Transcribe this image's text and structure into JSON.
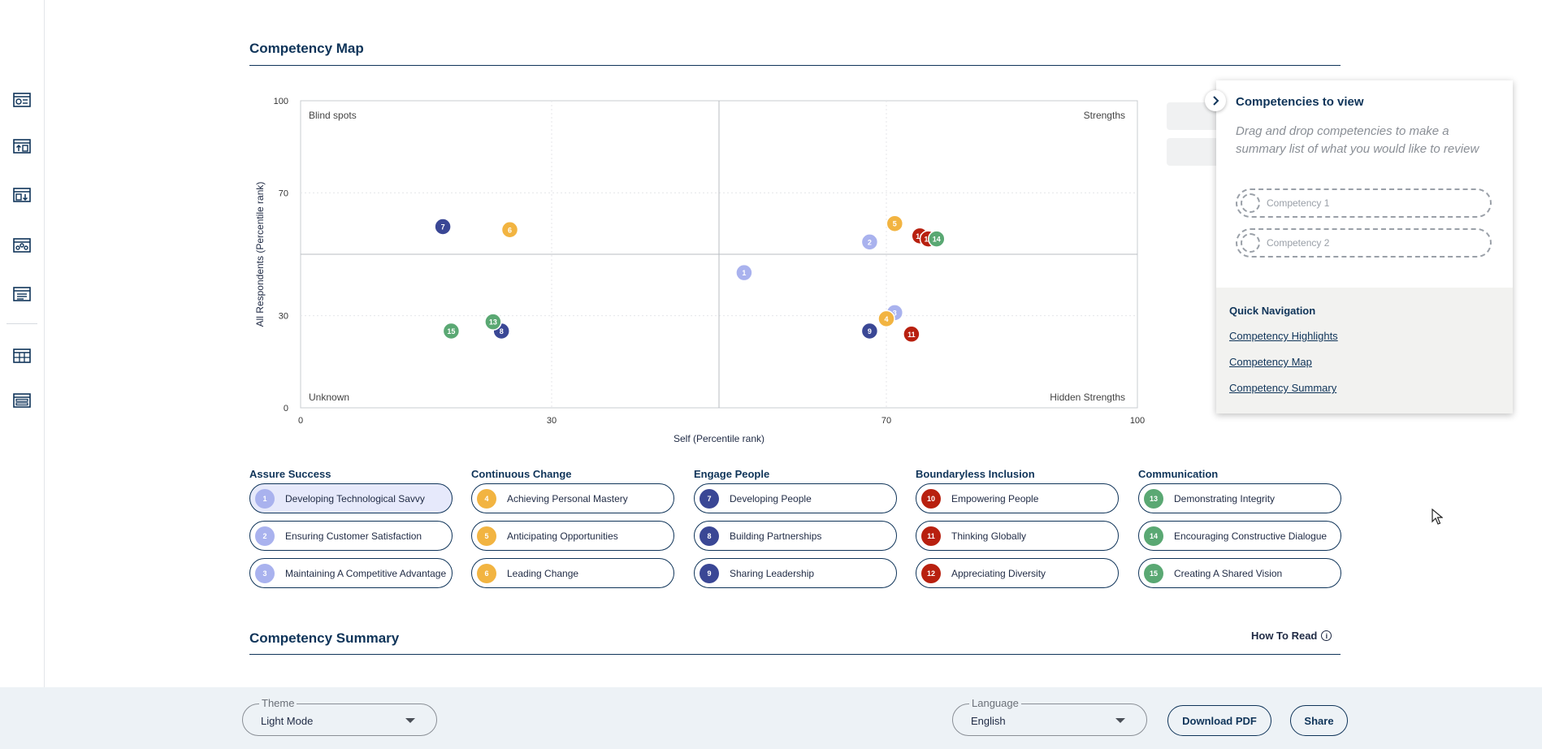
{
  "sections": {
    "map_title": "Competency Map",
    "summary_title": "Competency Summary",
    "how_to_read": "How To Read"
  },
  "rail": {
    "icons": [
      "scorecard-icon",
      "trending-up-icon",
      "trending-down-icon",
      "scatter-map-icon",
      "document-list-icon",
      "table-grid-icon",
      "summary-list-icon"
    ]
  },
  "chart_data": {
    "type": "scatter",
    "xlabel": "Self (Percentile rank)",
    "ylabel": "All Respondents (Percentile rank)",
    "xlim": [
      0,
      100
    ],
    "ylim": [
      0,
      100
    ],
    "x_ticks": [
      0,
      30,
      70,
      100
    ],
    "y_ticks": [
      0,
      30,
      70,
      100
    ],
    "quadrant_divider": {
      "x": 50,
      "y": 50
    },
    "quadrants": {
      "top_left": "Blind spots",
      "top_right": "Strengths",
      "bottom_left": "Unknown",
      "bottom_right": "Hidden Strengths"
    },
    "grid": true,
    "points": [
      {
        "id": "1",
        "x": 53,
        "y": 44,
        "color": "#a9b2ee"
      },
      {
        "id": "2",
        "x": 68,
        "y": 54,
        "color": "#a9b2ee"
      },
      {
        "id": "3",
        "x": 71,
        "y": 31,
        "color": "#a9b2ee"
      },
      {
        "id": "4",
        "x": 70,
        "y": 29,
        "color": "#f2b441"
      },
      {
        "id": "5",
        "x": 71,
        "y": 60,
        "color": "#f2b441"
      },
      {
        "id": "6",
        "x": 25,
        "y": 58,
        "color": "#f2b441"
      },
      {
        "id": "7",
        "x": 17,
        "y": 59,
        "color": "#3a4795"
      },
      {
        "id": "8",
        "x": 24,
        "y": 25,
        "color": "#3a4795"
      },
      {
        "id": "9",
        "x": 68,
        "y": 25,
        "color": "#3a4795"
      },
      {
        "id": "10",
        "x": 74,
        "y": 56,
        "color": "#b8200f"
      },
      {
        "id": "11",
        "x": 73,
        "y": 24,
        "color": "#b8200f"
      },
      {
        "id": "12",
        "x": 75,
        "y": 55,
        "color": "#b8200f"
      },
      {
        "id": "13",
        "x": 23,
        "y": 28,
        "color": "#5aa873"
      },
      {
        "id": "14",
        "x": 76,
        "y": 55,
        "color": "#5aa873"
      },
      {
        "id": "15",
        "x": 18,
        "y": 25,
        "color": "#5aa873"
      }
    ]
  },
  "panel": {
    "title": "Competencies to view",
    "description": "Drag and drop competencies to make a summary list of what you would like to review",
    "slots": [
      "Competency 1",
      "Competency 2"
    ],
    "quick_nav_title": "Quick Navigation",
    "links": [
      "Competency Highlights",
      "Competency Map",
      "Competency Summary"
    ]
  },
  "legend": [
    {
      "title": "Assure Success",
      "color": "#a9b2ee",
      "items": [
        {
          "num": "1",
          "label": "Developing Technological Savvy",
          "selected": true
        },
        {
          "num": "2",
          "label": "Ensuring Customer Satisfaction"
        },
        {
          "num": "3",
          "label": "Maintaining A Competitive Advantage"
        }
      ]
    },
    {
      "title": "Continuous Change",
      "color": "#f2b441",
      "items": [
        {
          "num": "4",
          "label": "Achieving Personal Mastery"
        },
        {
          "num": "5",
          "label": "Anticipating Opportunities"
        },
        {
          "num": "6",
          "label": "Leading Change"
        }
      ]
    },
    {
      "title": "Engage People",
      "color": "#3a4795",
      "items": [
        {
          "num": "7",
          "label": "Developing People"
        },
        {
          "num": "8",
          "label": "Building Partnerships"
        },
        {
          "num": "9",
          "label": "Sharing Leadership"
        }
      ]
    },
    {
      "title": "Boundaryless Inclusion",
      "color": "#b8200f",
      "items": [
        {
          "num": "10",
          "label": "Empowering People"
        },
        {
          "num": "11",
          "label": "Thinking Globally"
        },
        {
          "num": "12",
          "label": "Appreciating Diversity"
        }
      ]
    },
    {
      "title": "Communication",
      "color": "#5aa873",
      "items": [
        {
          "num": "13",
          "label": "Demonstrating Integrity"
        },
        {
          "num": "14",
          "label": "Encouraging Constructive Dialogue"
        },
        {
          "num": "15",
          "label": "Creating A Shared Vision"
        }
      ]
    }
  ],
  "footer": {
    "theme": {
      "label": "Theme",
      "value": "Light Mode"
    },
    "language": {
      "label": "Language",
      "value": "English"
    },
    "download_label": "Download PDF",
    "share_label": "Share"
  }
}
